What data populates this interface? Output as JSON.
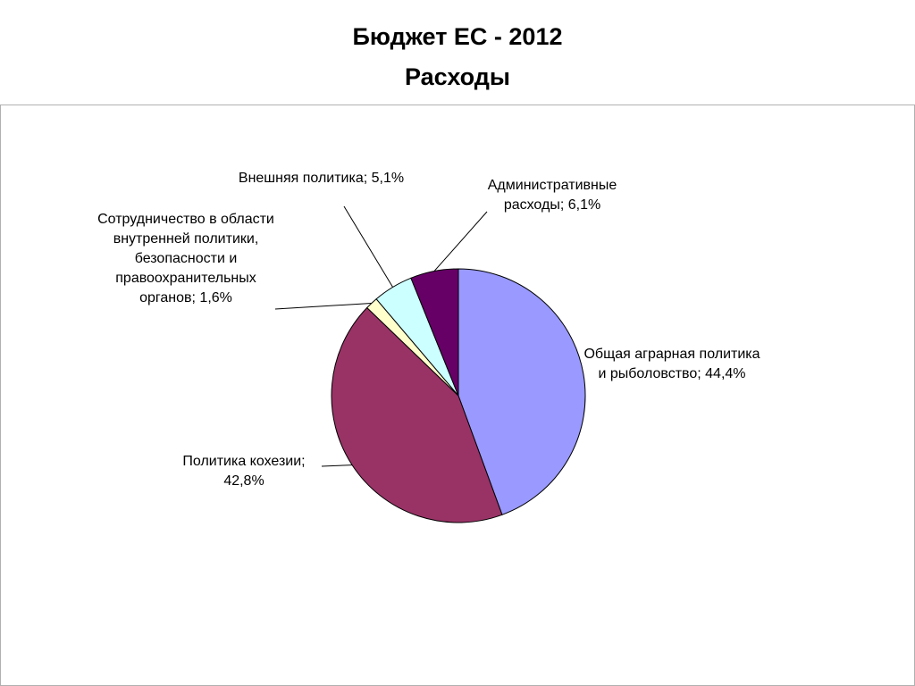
{
  "chart_data": {
    "type": "pie",
    "title": "Бюджет ЕС - 2012",
    "subtitle": "Расходы",
    "categories": [
      "Общая аграрная политика и рыболовство;",
      "Политика кохезии;",
      "Сотрудничество в области внутренней политики, безопасности и правоохранительных органов;",
      "Внешняя политика;",
      "Административные расходы;"
    ],
    "values": [
      44.4,
      42.8,
      1.6,
      5.1,
      6.1
    ],
    "value_labels": [
      "44,4%",
      "42,8%",
      "1,6%",
      "5,1%",
      "6,1%"
    ],
    "colors": [
      "#9999ff",
      "#993366",
      "#ffffcc",
      "#ccffff",
      "#660066"
    ]
  }
}
